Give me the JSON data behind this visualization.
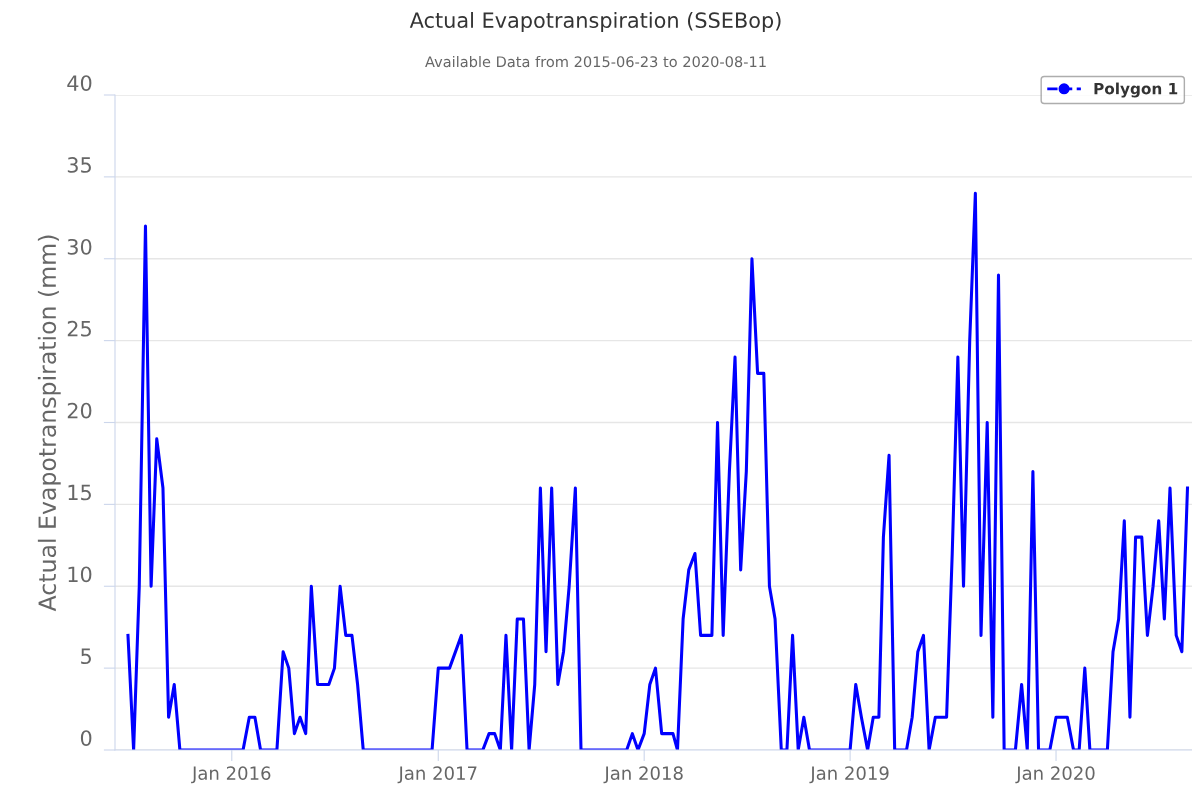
{
  "chart_data": {
    "type": "line",
    "title": "Actual Evapotranspiration (SSEBop)",
    "subtitle": "Available Data from 2015-06-23 to 2020-08-11",
    "ylabel": "Actual Evapotranspiration (mm)",
    "series": [
      {
        "name": "Polygon 1",
        "color": "#0000ff",
        "x": [
          "2015-07-01",
          "2015-07-11",
          "2015-07-21",
          "2015-08-01",
          "2015-08-11",
          "2015-08-21",
          "2015-09-01",
          "2015-09-11",
          "2015-09-21",
          "2015-10-01",
          "2016-01-21",
          "2016-02-01",
          "2016-02-11",
          "2016-02-21",
          "2016-03-21",
          "2016-04-01",
          "2016-04-11",
          "2016-04-21",
          "2016-05-01",
          "2016-05-11",
          "2016-05-21",
          "2016-06-01",
          "2016-06-21",
          "2016-07-01",
          "2016-07-11",
          "2016-07-21",
          "2016-08-01",
          "2016-08-11",
          "2016-08-21",
          "2016-12-21",
          "2017-01-01",
          "2017-01-21",
          "2017-02-11",
          "2017-02-21",
          "2017-03-21",
          "2017-04-01",
          "2017-04-11",
          "2017-04-21",
          "2017-05-01",
          "2017-05-11",
          "2017-05-21",
          "2017-06-01",
          "2017-06-11",
          "2017-06-21",
          "2017-07-01",
          "2017-07-11",
          "2017-07-21",
          "2017-08-01",
          "2017-08-11",
          "2017-08-21",
          "2017-09-01",
          "2017-09-11",
          "2017-12-01",
          "2017-12-11",
          "2017-12-21",
          "2018-01-01",
          "2018-01-11",
          "2018-01-21",
          "2018-02-01",
          "2018-02-21",
          "2018-03-01",
          "2018-03-11",
          "2018-03-21",
          "2018-04-01",
          "2018-04-11",
          "2018-05-01",
          "2018-05-11",
          "2018-05-21",
          "2018-06-01",
          "2018-06-11",
          "2018-06-21",
          "2018-07-01",
          "2018-07-11",
          "2018-07-21",
          "2018-08-01",
          "2018-08-11",
          "2018-08-21",
          "2018-09-01",
          "2018-09-11",
          "2018-09-21",
          "2018-10-01",
          "2018-10-11",
          "2018-10-21",
          "2019-01-01",
          "2019-01-11",
          "2019-01-21",
          "2019-02-01",
          "2019-02-11",
          "2019-02-21",
          "2019-03-01",
          "2019-03-11",
          "2019-03-21",
          "2019-04-11",
          "2019-04-21",
          "2019-05-01",
          "2019-05-11",
          "2019-05-21",
          "2019-06-01",
          "2019-06-21",
          "2019-07-01",
          "2019-07-11",
          "2019-07-21",
          "2019-08-01",
          "2019-08-11",
          "2019-08-21",
          "2019-09-01",
          "2019-09-11",
          "2019-09-21",
          "2019-10-01",
          "2019-10-21",
          "2019-11-01",
          "2019-11-11",
          "2019-11-21",
          "2019-12-01",
          "2019-12-21",
          "2020-01-01",
          "2020-01-21",
          "2020-02-01",
          "2020-02-11",
          "2020-02-21",
          "2020-03-01",
          "2020-04-01",
          "2020-04-11",
          "2020-04-21",
          "2020-05-01",
          "2020-05-11",
          "2020-05-21",
          "2020-06-01",
          "2020-06-11",
          "2020-06-21",
          "2020-07-01",
          "2020-07-11",
          "2020-07-21",
          "2020-08-01",
          "2020-08-11",
          "2020-08-21"
        ],
        "values": [
          7,
          0,
          10,
          32,
          10,
          19,
          16,
          2,
          4,
          0,
          0,
          2,
          2,
          0,
          0,
          6,
          5,
          1,
          2,
          1,
          10,
          4,
          4,
          5,
          10,
          7,
          7,
          4,
          0,
          0,
          5,
          5,
          7,
          0,
          0,
          1,
          1,
          0,
          7,
          0,
          8,
          8,
          0,
          4,
          16,
          6,
          16,
          4,
          6,
          10,
          16,
          0,
          0,
          1,
          0,
          1,
          4,
          5,
          1,
          1,
          0,
          8,
          11,
          12,
          7,
          7,
          20,
          7,
          17,
          24,
          11,
          17,
          30,
          23,
          23,
          10,
          8,
          0,
          0,
          7,
          0,
          2,
          0,
          0,
          4,
          2,
          0,
          2,
          2,
          13,
          18,
          0,
          0,
          2,
          6,
          7,
          0,
          2,
          2,
          12,
          24,
          10,
          25,
          34,
          7,
          20,
          2,
          29,
          0,
          0,
          4,
          0,
          17,
          0,
          0,
          2,
          2,
          0,
          0,
          5,
          0,
          0,
          6,
          8,
          14,
          2,
          13,
          13,
          7,
          10,
          14,
          8,
          16,
          7,
          6,
          16
        ]
      }
    ],
    "xlim": [
      "2015-06-08",
      "2020-08-29"
    ],
    "xticks": [
      {
        "value": "2016-01-01",
        "label": "Jan 2016"
      },
      {
        "value": "2017-01-01",
        "label": "Jan 2017"
      },
      {
        "value": "2018-01-01",
        "label": "Jan 2018"
      },
      {
        "value": "2019-01-01",
        "label": "Jan 2019"
      },
      {
        "value": "2020-01-01",
        "label": "Jan 2020"
      }
    ],
    "ylim": [
      0,
      40
    ],
    "yticks": [
      0,
      5,
      10,
      15,
      20,
      25,
      30,
      35,
      40
    ],
    "grid": "y",
    "legend": "top right",
    "line_style": "solid"
  }
}
